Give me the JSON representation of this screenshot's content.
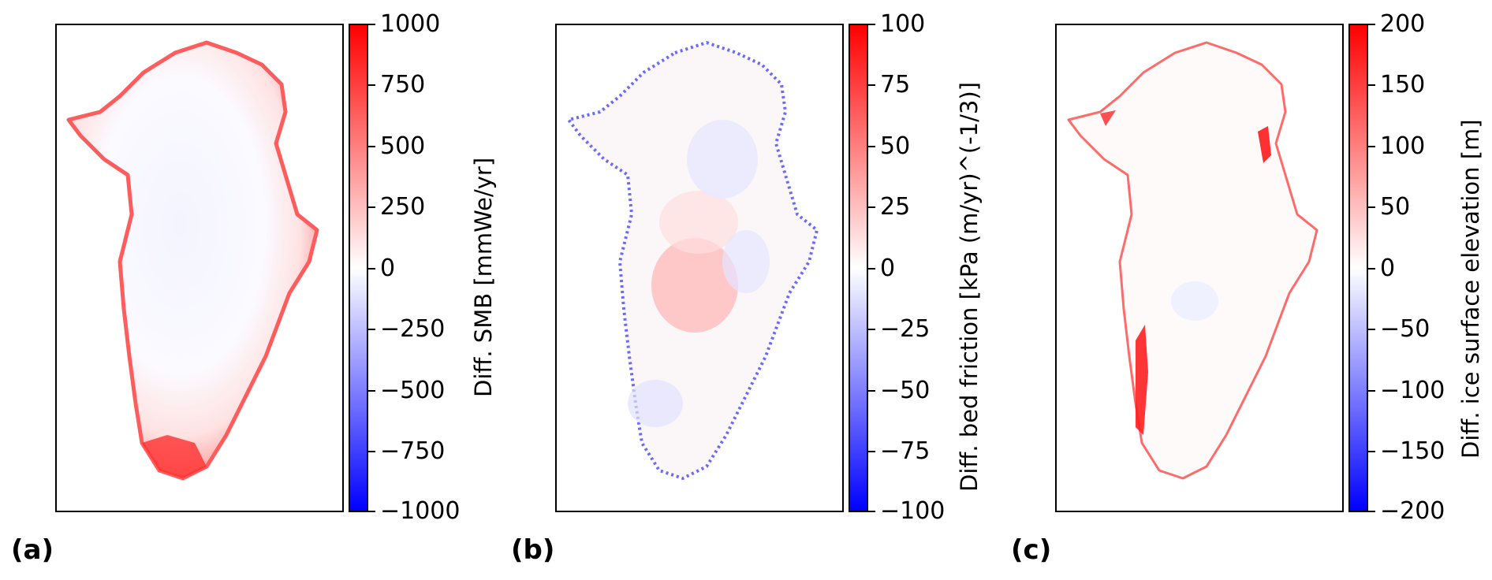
{
  "panels": [
    {
      "tag": "(a)",
      "colorbar_label": "Diff. SMB [mmWe/yr]",
      "ticks": [
        "1000",
        "750",
        "500",
        "250",
        "0",
        "−250",
        "−500",
        "−750",
        "−1000"
      ],
      "range": [
        -1000,
        1000
      ]
    },
    {
      "tag": "(b)",
      "colorbar_label": "Diff. bed friction [kPa (m/yr)^(-1/3)]",
      "ticks": [
        "100",
        "75",
        "50",
        "25",
        "0",
        "−25",
        "−50",
        "−75",
        "−100"
      ],
      "range": [
        -100,
        100
      ]
    },
    {
      "tag": "(c)",
      "colorbar_label": "Diff. ice surface elevation [m]",
      "ticks": [
        "200",
        "150",
        "100",
        "50",
        "0",
        "−50",
        "−100",
        "−150",
        "−200"
      ],
      "range": [
        -200,
        200
      ]
    }
  ],
  "colormap": {
    "high": "#ff0000",
    "mid": "#ffffff",
    "low": "#0000ff"
  }
}
